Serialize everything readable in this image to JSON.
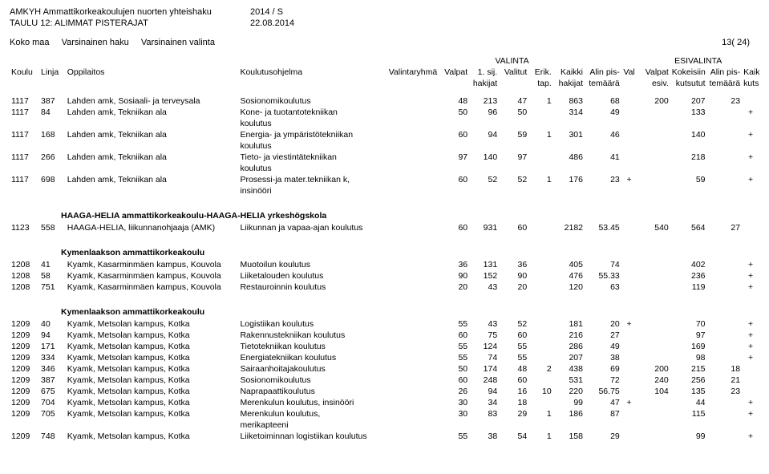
{
  "header": {
    "title1": "AMKYH Ammattikorkeakoulujen nuorten yhteishaku",
    "title2": "TAULU 12: ALIMMAT PISTERAJAT",
    "period": "2014 / S",
    "date": "22.08.2014",
    "sub1": "Koko maa",
    "sub2": "Varsinainen haku",
    "sub3": "Varsinainen valinta",
    "page": "13( 24)"
  },
  "colgroups": {
    "valinta": "VALINTA",
    "esivalinta": "ESIVALINTA"
  },
  "cols": {
    "koulu": "Koulu",
    "linja": "Linja",
    "oppilaitos": "Oppilaitos",
    "koulutusohjelma": "Koulutusohjelma",
    "valintaryhma": "Valintaryhmä",
    "valpat": "Valpat",
    "sij1": "1. sij.",
    "hakijat": "hakijat",
    "valitut": "Valitut",
    "erik": "Erik.",
    "tap": "tap.",
    "kaikki": "Kaikki",
    "hakijat2": "hakijat",
    "alinpis": "Alin pis-",
    "temaara": "temäärä",
    "val": "Val",
    "valpat2": "Valpat",
    "esiv": "esiv.",
    "kokeisiin": "Kokeisiin",
    "kutsutut": "kutsutut",
    "alinpis2": "Alin pis-",
    "temaara2": "temäärä",
    "kaikki2": "Kaikki",
    "kutsuttu": "kutsuttu"
  },
  "sections": [
    {
      "title": "",
      "rows": [
        {
          "koulu": "1117",
          "linja": "387",
          "oppi": "Lahden amk, Sosiaali- ja terveysala",
          "ohj": "Sosionomikoulutus",
          "valpat": "48",
          "sij": "213",
          "valitut": "47",
          "erik": "1",
          "kaikki": "863",
          "alin": "68",
          "val": "",
          "valpat2": "200",
          "kok": "207",
          "alin2": "23",
          "kk": ""
        },
        {
          "koulu": "1117",
          "linja": "84",
          "oppi": "Lahden amk, Tekniikan ala",
          "ohj": "Kone- ja tuotantotekniikan",
          "ohj2": "koulutus",
          "valpat": "50",
          "sij": "96",
          "valitut": "50",
          "erik": "",
          "kaikki": "314",
          "alin": "49",
          "val": "",
          "valpat2": "",
          "kok": "133",
          "alin2": "",
          "kk": "+"
        },
        {
          "koulu": "1117",
          "linja": "168",
          "oppi": "Lahden amk, Tekniikan ala",
          "ohj": "Energia- ja ympäristötekniikan",
          "ohj2": "koulutus",
          "valpat": "60",
          "sij": "94",
          "valitut": "59",
          "erik": "1",
          "kaikki": "301",
          "alin": "46",
          "val": "",
          "valpat2": "",
          "kok": "140",
          "alin2": "",
          "kk": "+"
        },
        {
          "koulu": "1117",
          "linja": "266",
          "oppi": "Lahden amk, Tekniikan ala",
          "ohj": "Tieto- ja viestintätekniikan",
          "ohj2": "koulutus",
          "valpat": "97",
          "sij": "140",
          "valitut": "97",
          "erik": "",
          "kaikki": "486",
          "alin": "41",
          "val": "",
          "valpat2": "",
          "kok": "218",
          "alin2": "",
          "kk": "+"
        },
        {
          "koulu": "1117",
          "linja": "698",
          "oppi": "Lahden amk, Tekniikan ala",
          "ohj": "Prosessi-ja mater.tekniikan k,",
          "ohj2": "insinööri",
          "valpat": "60",
          "sij": "52",
          "valitut": "52",
          "erik": "1",
          "kaikki": "176",
          "alin": "23",
          "val": "+",
          "valpat2": "",
          "kok": "59",
          "alin2": "",
          "kk": "+"
        }
      ]
    },
    {
      "title": "HAAGA-HELIA ammattikorkeakoulu-HAAGA-HELIA yrkeshögskola",
      "rows": [
        {
          "koulu": "1123",
          "linja": "558",
          "oppi": "HAAGA-HELIA, liikunnanohjaaja (AMK)",
          "ohj": "Liikunnan ja vapaa-ajan koulutus",
          "valpat": "60",
          "sij": "931",
          "valitut": "60",
          "erik": "",
          "kaikki": "2182",
          "alin": "53.45",
          "val": "",
          "valpat2": "540",
          "kok": "564",
          "alin2": "27",
          "kk": ""
        }
      ]
    },
    {
      "title": "Kymenlaakson ammattikorkeakoulu",
      "rows": [
        {
          "koulu": "1208",
          "linja": "41",
          "oppi": "Kyamk, Kasarminmäen kampus, Kouvola",
          "ohj": "Muotoilun koulutus",
          "valpat": "36",
          "sij": "131",
          "valitut": "36",
          "erik": "",
          "kaikki": "405",
          "alin": "74",
          "val": "",
          "valpat2": "",
          "kok": "402",
          "alin2": "",
          "kk": "+"
        },
        {
          "koulu": "1208",
          "linja": "58",
          "oppi": "Kyamk, Kasarminmäen kampus, Kouvola",
          "ohj": "Liiketalouden koulutus",
          "valpat": "90",
          "sij": "152",
          "valitut": "90",
          "erik": "",
          "kaikki": "476",
          "alin": "55.33",
          "val": "",
          "valpat2": "",
          "kok": "236",
          "alin2": "",
          "kk": "+"
        },
        {
          "koulu": "1208",
          "linja": "751",
          "oppi": "Kyamk, Kasarminmäen kampus, Kouvola",
          "ohj": "Restauroinnin koulutus",
          "valpat": "20",
          "sij": "43",
          "valitut": "20",
          "erik": "",
          "kaikki": "120",
          "alin": "63",
          "val": "",
          "valpat2": "",
          "kok": "119",
          "alin2": "",
          "kk": "+"
        }
      ]
    },
    {
      "title": "Kymenlaakson ammattikorkeakoulu",
      "rows": [
        {
          "koulu": "1209",
          "linja": "40",
          "oppi": "Kyamk, Metsolan kampus, Kotka",
          "ohj": "Logistiikan koulutus",
          "valpat": "55",
          "sij": "43",
          "valitut": "52",
          "erik": "",
          "kaikki": "181",
          "alin": "20",
          "val": "+",
          "valpat2": "",
          "kok": "70",
          "alin2": "",
          "kk": "+"
        },
        {
          "koulu": "1209",
          "linja": "94",
          "oppi": "Kyamk, Metsolan kampus, Kotka",
          "ohj": "Rakennustekniikan koulutus",
          "valpat": "60",
          "sij": "75",
          "valitut": "60",
          "erik": "",
          "kaikki": "216",
          "alin": "27",
          "val": "",
          "valpat2": "",
          "kok": "97",
          "alin2": "",
          "kk": "+"
        },
        {
          "koulu": "1209",
          "linja": "171",
          "oppi": "Kyamk, Metsolan kampus, Kotka",
          "ohj": "Tietotekniikan koulutus",
          "valpat": "55",
          "sij": "124",
          "valitut": "55",
          "erik": "",
          "kaikki": "286",
          "alin": "49",
          "val": "",
          "valpat2": "",
          "kok": "169",
          "alin2": "",
          "kk": "+"
        },
        {
          "koulu": "1209",
          "linja": "334",
          "oppi": "Kyamk, Metsolan kampus, Kotka",
          "ohj": "Energiatekniikan koulutus",
          "valpat": "55",
          "sij": "74",
          "valitut": "55",
          "erik": "",
          "kaikki": "207",
          "alin": "38",
          "val": "",
          "valpat2": "",
          "kok": "98",
          "alin2": "",
          "kk": "+"
        },
        {
          "koulu": "1209",
          "linja": "346",
          "oppi": "Kyamk, Metsolan kampus, Kotka",
          "ohj": "Sairaanhoitajakoulutus",
          "valpat": "50",
          "sij": "174",
          "valitut": "48",
          "erik": "2",
          "kaikki": "438",
          "alin": "69",
          "val": "",
          "valpat2": "200",
          "kok": "215",
          "alin2": "18",
          "kk": ""
        },
        {
          "koulu": "1209",
          "linja": "387",
          "oppi": "Kyamk, Metsolan kampus, Kotka",
          "ohj": "Sosionomikoulutus",
          "valpat": "60",
          "sij": "248",
          "valitut": "60",
          "erik": "",
          "kaikki": "531",
          "alin": "72",
          "val": "",
          "valpat2": "240",
          "kok": "256",
          "alin2": "21",
          "kk": ""
        },
        {
          "koulu": "1209",
          "linja": "675",
          "oppi": "Kyamk, Metsolan kampus, Kotka",
          "ohj": "Naprapaattikoulutus",
          "valpat": "26",
          "sij": "94",
          "valitut": "16",
          "erik": "10",
          "kaikki": "220",
          "alin": "56.75",
          "val": "",
          "valpat2": "104",
          "kok": "135",
          "alin2": "23",
          "kk": ""
        },
        {
          "koulu": "1209",
          "linja": "704",
          "oppi": "Kyamk, Metsolan kampus, Kotka",
          "ohj": "Merenkulun koulutus, insinööri",
          "valpat": "30",
          "sij": "34",
          "valitut": "18",
          "erik": "",
          "kaikki": "99",
          "alin": "47",
          "val": "+",
          "valpat2": "",
          "kok": "44",
          "alin2": "",
          "kk": "+"
        },
        {
          "koulu": "1209",
          "linja": "705",
          "oppi": "Kyamk, Metsolan kampus, Kotka",
          "ohj": "Merenkulun koulutus,",
          "ohj2": "merikapteeni",
          "valpat": "30",
          "sij": "83",
          "valitut": "29",
          "erik": "1",
          "kaikki": "186",
          "alin": "87",
          "val": "",
          "valpat2": "",
          "kok": "115",
          "alin2": "",
          "kk": "+"
        },
        {
          "koulu": "1209",
          "linja": "748",
          "oppi": "Kyamk, Metsolan kampus, Kotka",
          "ohj": "Liiketoiminnan logistiikan koulutus",
          "valpat": "55",
          "sij": "38",
          "valitut": "54",
          "erik": "1",
          "kaikki": "158",
          "alin": "29",
          "val": "",
          "valpat2": "",
          "kok": "99",
          "alin2": "",
          "kk": "+"
        }
      ]
    }
  ]
}
